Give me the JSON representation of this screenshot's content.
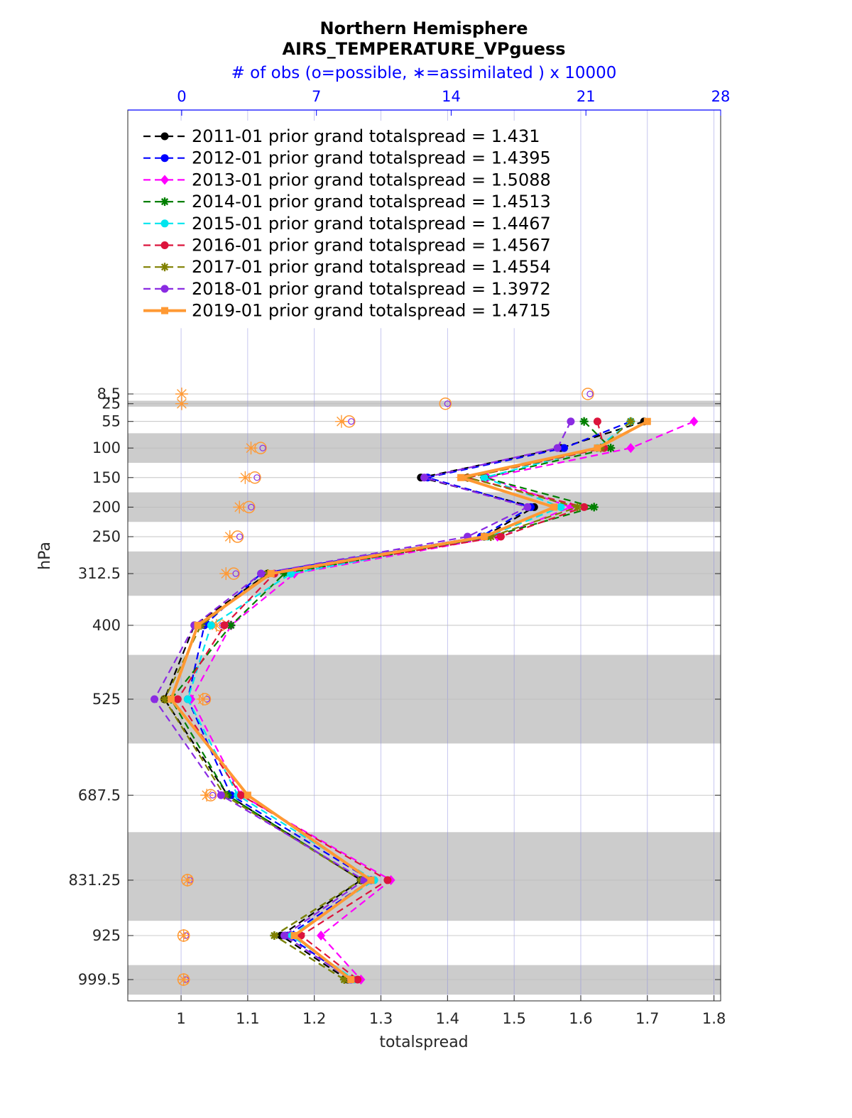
{
  "chart_data": {
    "type": "line",
    "title": "Northern Hemisphere",
    "subtitle": "AIRS_TEMPERATURE_VPguess",
    "top_axis_label": "# of obs (o=possible, ∗=assimilated ) x 10000",
    "xlabel": "totalspread",
    "ylabel": "hPa",
    "xlim": [
      0.92,
      1.81
    ],
    "x_ticks": [
      "1",
      "1.1",
      "1.2",
      "1.3",
      "1.4",
      "1.5",
      "1.6",
      "1.7",
      "1.8"
    ],
    "top_xlim": [
      -2.8,
      28
    ],
    "top_ticks": [
      "0",
      "7",
      "14",
      "21",
      "28"
    ],
    "y_reversed": true,
    "grid": true,
    "legend_placement": "top-left",
    "levels": [
      8.5,
      25,
      55,
      100,
      150,
      200,
      250,
      312.5,
      400,
      525,
      687.5,
      831.25,
      925,
      999.5
    ],
    "level_labels": [
      "8.5",
      "25",
      "55",
      "100",
      "150",
      "200",
      "250",
      "312.5",
      "400",
      "525",
      "687.5",
      "831.25",
      "925",
      "999.5"
    ],
    "shaded_layers": [
      [
        20,
        30
      ],
      [
        75,
        125
      ],
      [
        175,
        225
      ],
      [
        275,
        350
      ],
      [
        450,
        600
      ],
      [
        750,
        900
      ],
      [
        975,
        1025
      ]
    ],
    "series": [
      {
        "name": "2011-01 prior grand totalspread = 1.431",
        "color": "#000000",
        "marker": "dot",
        "dashed": true,
        "values": [
          null,
          null,
          1.695,
          1.57,
          1.36,
          1.53,
          1.455,
          1.13,
          1.02,
          0.975,
          1.07,
          1.27,
          1.15,
          1.25
        ]
      },
      {
        "name": "2012-01 prior grand totalspread = 1.4395",
        "color": "#0000ff",
        "marker": "dot",
        "dashed": true,
        "values": [
          null,
          null,
          1.675,
          1.575,
          1.37,
          1.525,
          1.45,
          1.12,
          1.035,
          1.01,
          1.075,
          1.285,
          1.16,
          1.255
        ]
      },
      {
        "name": "2013-01 prior grand totalspread = 1.5088",
        "color": "#ff00ff",
        "marker": "diamond",
        "dashed": true,
        "values": [
          null,
          null,
          1.77,
          1.675,
          1.46,
          1.585,
          1.475,
          1.17,
          1.075,
          1.015,
          1.09,
          1.315,
          1.21,
          1.27
        ]
      },
      {
        "name": "2014-01 prior grand totalspread = 1.4513",
        "color": "#007f00",
        "marker": "star",
        "dashed": true,
        "values": [
          null,
          null,
          1.605,
          1.645,
          1.455,
          1.62,
          1.465,
          1.155,
          1.075,
          0.985,
          1.07,
          1.27,
          1.14,
          1.245
        ]
      },
      {
        "name": "2015-01 prior grand totalspread = 1.4467",
        "color": "#00e5ee",
        "marker": "dot",
        "dashed": true,
        "values": [
          null,
          null,
          1.675,
          1.625,
          1.455,
          1.57,
          1.46,
          1.165,
          1.045,
          1.01,
          1.085,
          1.29,
          1.165,
          1.26
        ]
      },
      {
        "name": "2016-01 prior grand totalspread = 1.4567",
        "color": "#dc143c",
        "marker": "dot",
        "dashed": true,
        "values": [
          null,
          null,
          1.625,
          1.635,
          1.43,
          1.605,
          1.48,
          1.14,
          1.065,
          0.995,
          1.09,
          1.31,
          1.18,
          1.265
        ]
      },
      {
        "name": "2017-01 prior grand totalspread = 1.4554",
        "color": "#808000",
        "marker": "star",
        "dashed": true,
        "values": [
          null,
          null,
          1.675,
          1.63,
          1.43,
          1.595,
          1.465,
          1.13,
          1.03,
          0.975,
          1.065,
          1.27,
          1.14,
          1.245
        ]
      },
      {
        "name": "2018-01 prior grand totalspread = 1.3972",
        "color": "#8a2be2",
        "marker": "dot",
        "dashed": true,
        "values": [
          null,
          null,
          1.585,
          1.565,
          1.365,
          1.52,
          1.43,
          1.12,
          1.02,
          0.96,
          1.06,
          1.275,
          1.155,
          1.255
        ]
      },
      {
        "name": "2019-01 prior grand totalspread = 1.4715",
        "color": "#ff9933",
        "marker": "square",
        "dashed": false,
        "values": [
          null,
          null,
          1.7,
          1.625,
          1.42,
          1.56,
          1.455,
          1.135,
          1.025,
          0.985,
          1.1,
          1.285,
          1.17,
          1.255
        ]
      }
    ],
    "obs_count_x10000": {
      "possible": [
        21.1,
        13.7,
        8.7,
        4.1,
        3.8,
        3.5,
        2.9,
        2.7,
        2.0,
        1.2,
        1.5,
        0.3,
        0.1,
        0.1
      ],
      "assimilated": [
        0.0,
        0.0,
        8.3,
        3.6,
        3.3,
        3.0,
        2.5,
        2.3,
        1.8,
        1.1,
        1.3,
        0.3,
        0.1,
        0.1
      ]
    }
  }
}
